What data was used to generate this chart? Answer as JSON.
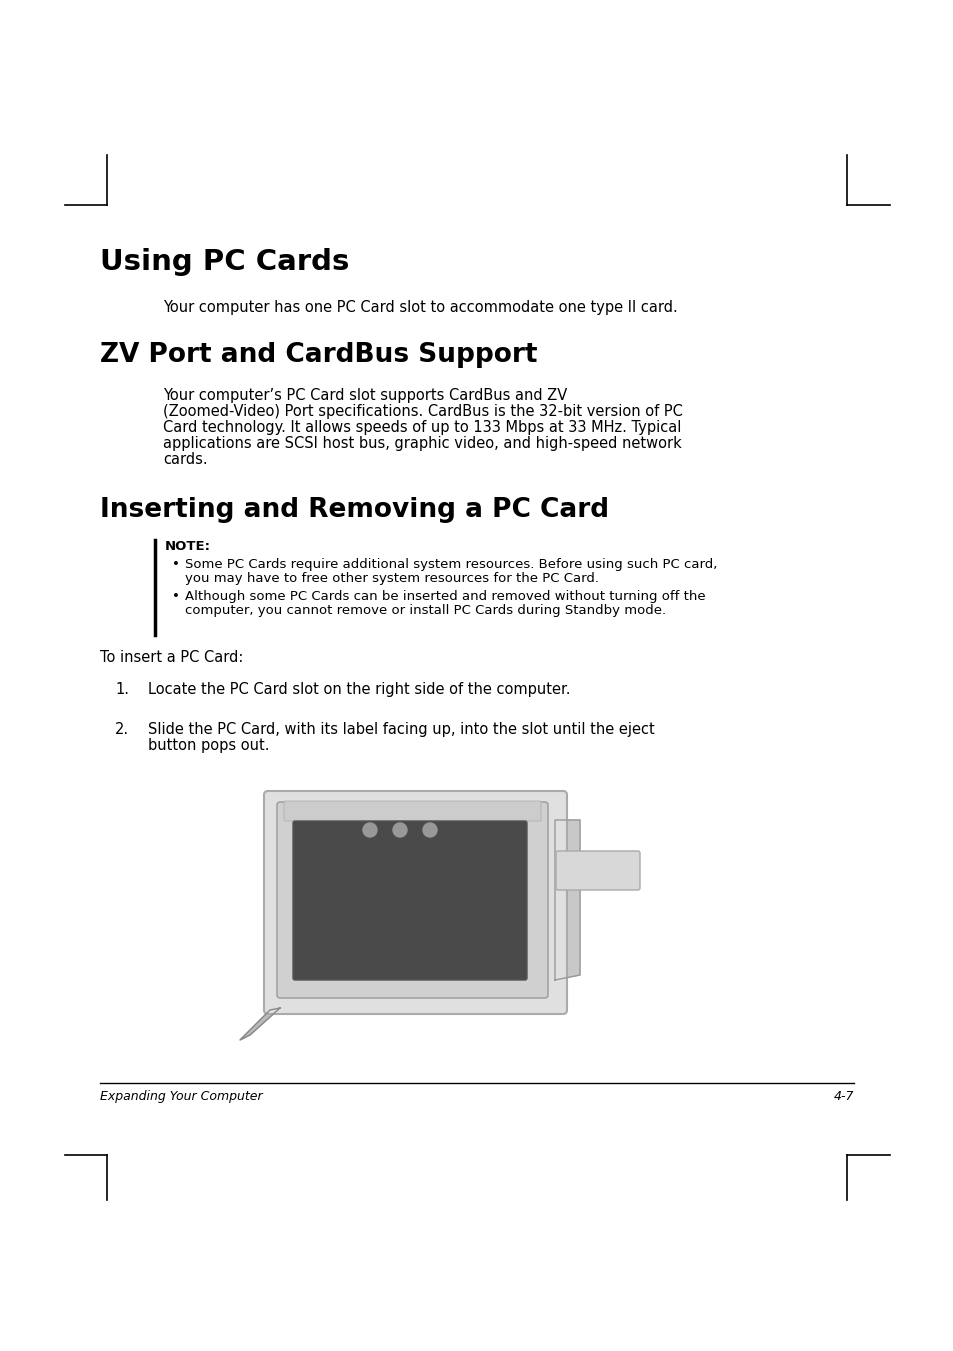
{
  "page_bg": "#ffffff",
  "page_width": 9.54,
  "page_height": 13.51,
  "dpi": 100,
  "title1": "Using PC Cards",
  "title1_fontsize": 21,
  "para1": "Your computer has one PC Card slot to accommodate one type II card.",
  "para1_fontsize": 10.5,
  "title2": "ZV Port and CardBus Support",
  "title2_fontsize": 19,
  "para2_line1": "Your computer’s PC Card slot supports CardBus and ZV",
  "para2_line2": "(Zoomed-Video) Port specifications. CardBus is the 32-bit version of PC",
  "para2_line3": "Card technology. It allows speeds of up to 133 Mbps at 33 MHz. Typical",
  "para2_line4": "applications are SCSI host bus, graphic video, and high-speed network",
  "para2_line5": "cards.",
  "para2_fontsize": 10.5,
  "title3": "Inserting and Removing a PC Card",
  "title3_fontsize": 19,
  "note_label": "NOTE:",
  "note_label_fontsize": 9.5,
  "note_bullet1_line1": "Some PC Cards require additional system resources. Before using such PC card,",
  "note_bullet1_line2": "you may have to free other system resources for the PC Card.",
  "note_bullet2_line1": "Although some PC Cards can be inserted and removed without turning off the",
  "note_bullet2_line2": "computer, you cannot remove or install PC Cards during Standby mode.",
  "note_fontsize": 9.5,
  "para3": "To insert a PC Card:",
  "para3_fontsize": 10.5,
  "step1_text": "Locate the PC Card slot on the right side of the computer.",
  "step2_line1": "Slide the PC Card, with its label facing up, into the slot until the eject",
  "step2_line2": "button pops out.",
  "step_fontsize": 10.5,
  "footer_left": "Expanding Your Computer",
  "footer_right": "4-7",
  "footer_fontsize": 9
}
